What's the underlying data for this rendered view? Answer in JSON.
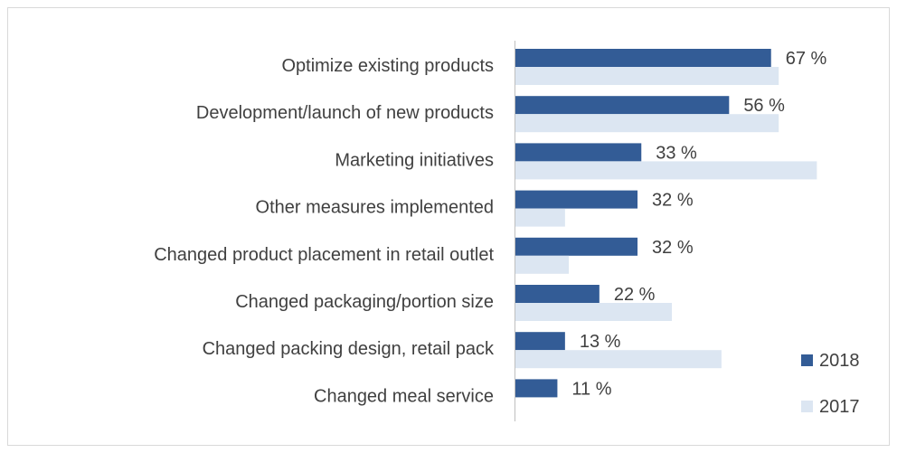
{
  "chart_data": {
    "type": "bar",
    "orientation": "horizontal",
    "categories": [
      "Optimize existing products",
      "Development/launch of new products",
      "Marketing initiatives",
      "Other measures implemented",
      "Changed product placement in retail outlet",
      "Changed packaging/portion size",
      "Changed packing design, retail pack",
      "Changed meal service"
    ],
    "series": [
      {
        "name": "2018",
        "color": "#335C96",
        "values": [
          67,
          56,
          33,
          32,
          32,
          22,
          13,
          11
        ],
        "labels": [
          "67 %",
          "56 %",
          "33 %",
          "32 %",
          "32 %",
          "22 %",
          "13 %",
          "11 %"
        ]
      },
      {
        "name": "2017",
        "color": "#DCE6F2",
        "values": [
          69,
          69,
          79,
          13,
          14,
          41,
          54,
          0
        ]
      }
    ],
    "xlim": [
      0,
      100
    ],
    "grid": false,
    "legend": "bottom-right"
  }
}
